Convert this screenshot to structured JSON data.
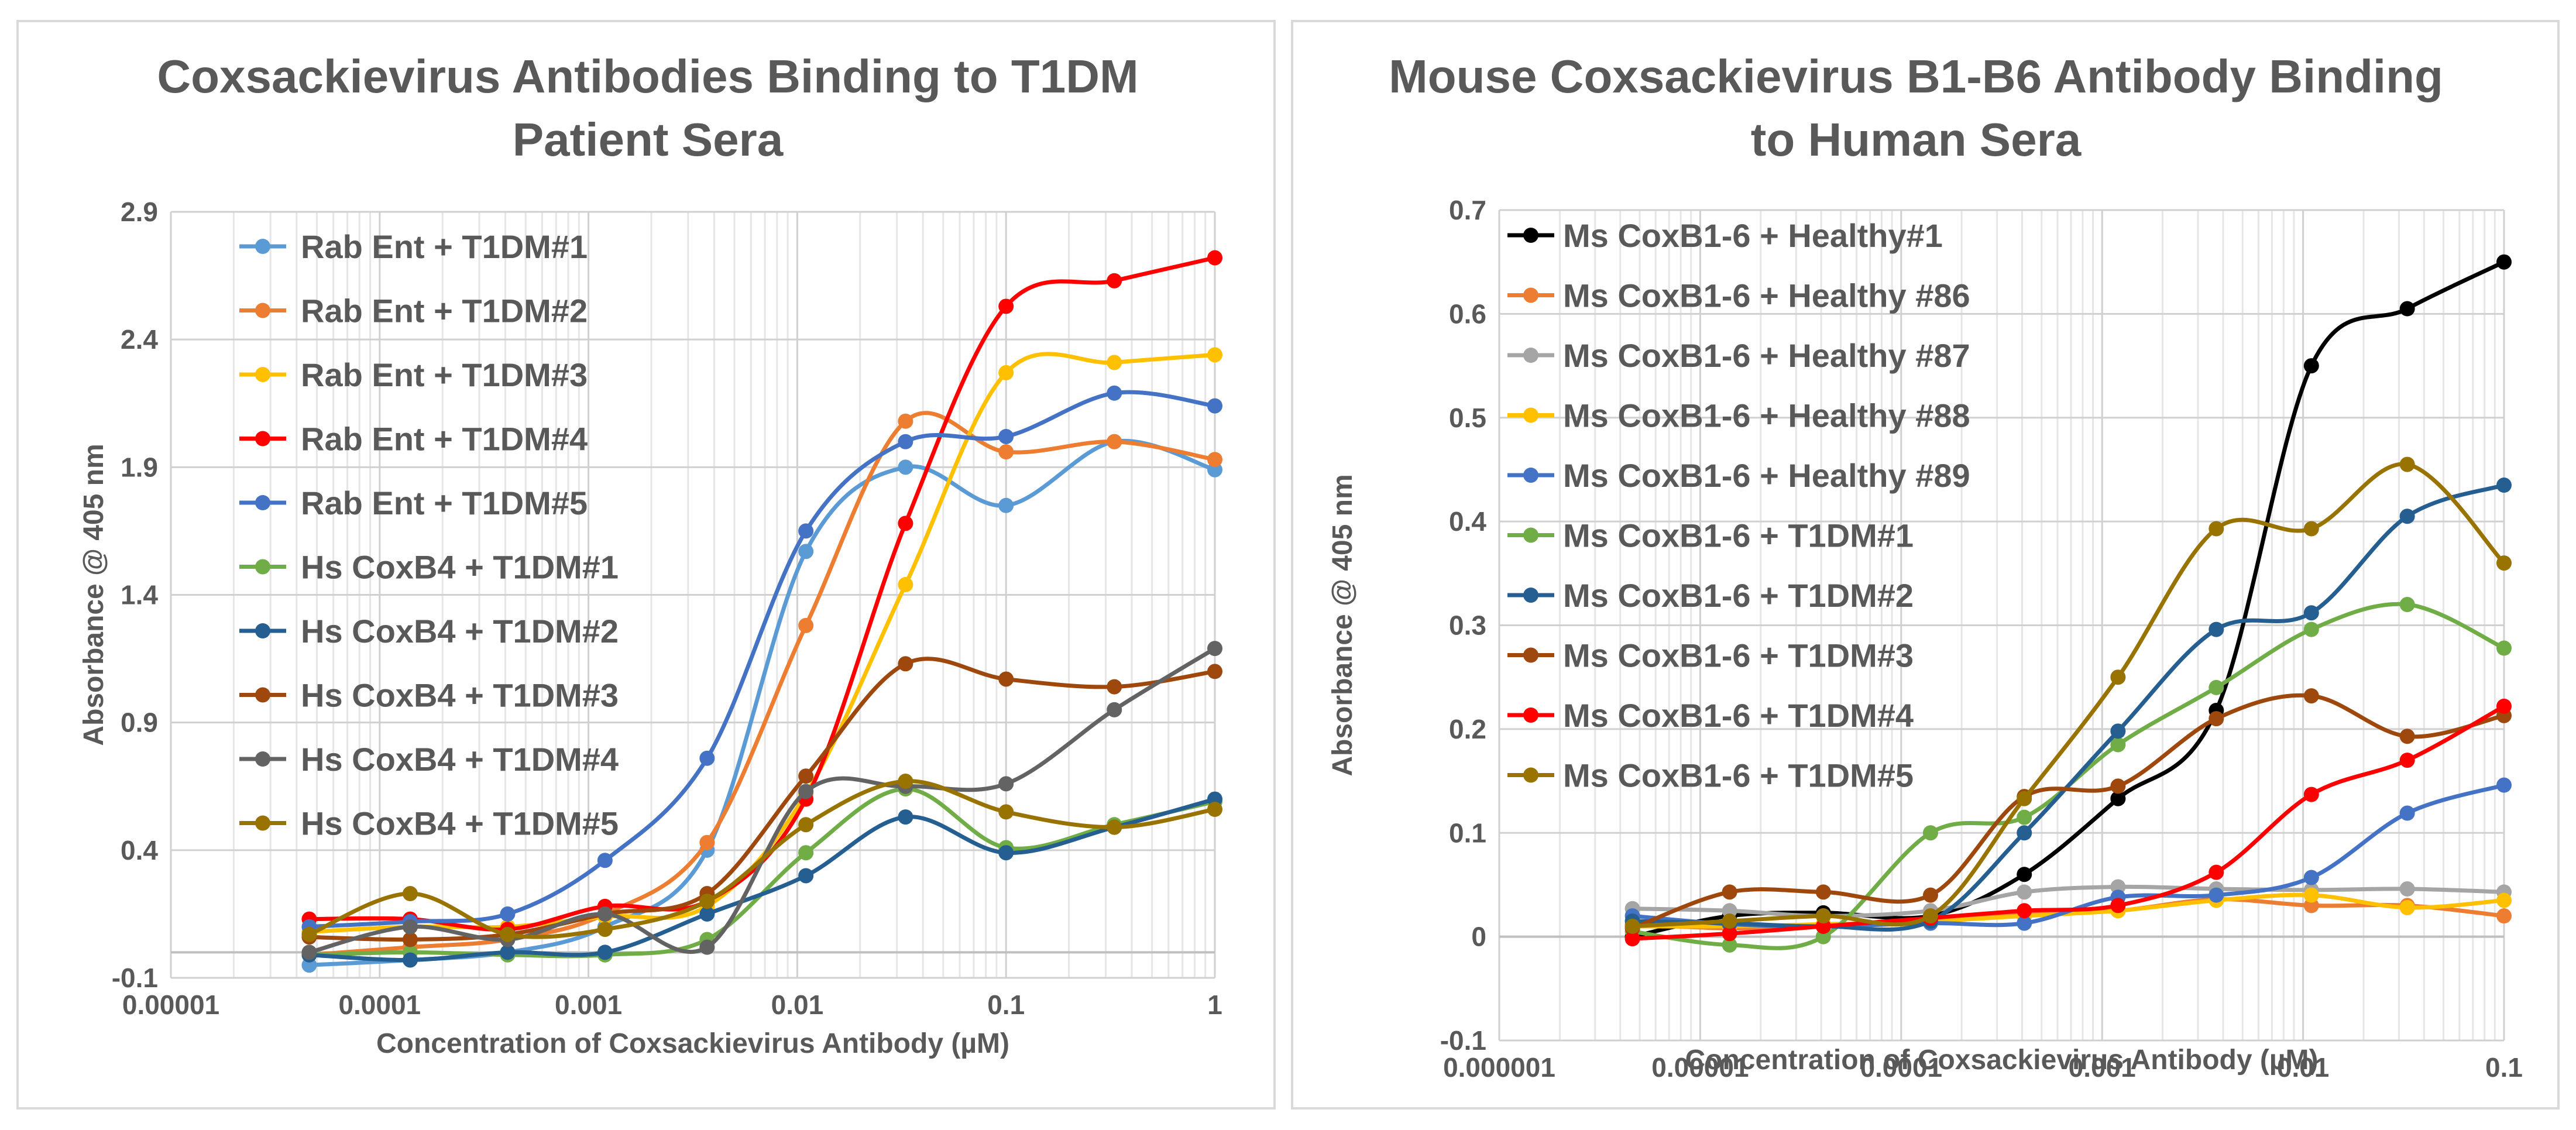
{
  "chart_data": [
    {
      "type": "line",
      "title": "Coxsackievirus Antibodies Binding to T1DM Patient Sera",
      "title_lines": [
        "Coxsackievirus Antibodies Binding to T1DM",
        "Patient Sera"
      ],
      "xlabel": "Concentration of Coxsackievirus Antibody (µM)",
      "ylabel": "Absorbance @ 405 nm",
      "xscale": "log",
      "xlim": [
        1e-05,
        1
      ],
      "ylim": [
        -0.1,
        2.9
      ],
      "xticks": [
        1e-05,
        0.0001,
        0.001,
        0.01,
        0.1,
        1
      ],
      "xtick_labels": [
        "0.00001",
        "0.0001",
        "0.001",
        "0.01",
        "0.1",
        "1"
      ],
      "yticks": [
        -0.1,
        0.4,
        0.9,
        1.4,
        1.9,
        2.4,
        2.9
      ],
      "ytick_labels": [
        "-0.1",
        "0.4",
        "0.9",
        "1.4",
        "1.9",
        "2.4",
        "2.9"
      ],
      "legend_position": "top-left",
      "x": [
        4.6e-05,
        0.00014,
        0.00041,
        0.0012,
        0.0037,
        0.011,
        0.033,
        0.1,
        0.33,
        1
      ],
      "series": [
        {
          "name": "Rab Ent + T1DM#1",
          "color": "#5b9bd5",
          "values": [
            -0.05,
            -0.03,
            0.0,
            0.1,
            0.4,
            1.57,
            1.9,
            1.75,
            2.0,
            1.89
          ]
        },
        {
          "name": "Rab Ent + T1DM#2",
          "color": "#ed7d31",
          "values": [
            -0.01,
            0.02,
            0.05,
            0.15,
            0.43,
            1.28,
            2.08,
            1.96,
            2.0,
            1.93
          ]
        },
        {
          "name": "Rab Ent + T1DM#3",
          "color": "#ffc000",
          "values": [
            0.08,
            0.1,
            0.1,
            0.14,
            0.18,
            0.62,
            1.44,
            2.27,
            2.31,
            2.34
          ]
        },
        {
          "name": "Rab Ent + T1DM#4",
          "color": "#ff0000",
          "values": [
            0.13,
            0.13,
            0.09,
            0.18,
            0.2,
            0.6,
            1.68,
            2.53,
            2.63,
            2.72
          ]
        },
        {
          "name": "Rab Ent + T1DM#5",
          "color": "#4472c4",
          "values": [
            0.1,
            0.12,
            0.15,
            0.36,
            0.76,
            1.65,
            2.0,
            2.02,
            2.19,
            2.14
          ]
        },
        {
          "name": "Hs CoxB4 + T1DM#1",
          "color": "#70ad47",
          "values": [
            -0.01,
            0.0,
            -0.01,
            -0.01,
            0.05,
            0.39,
            0.64,
            0.41,
            0.5,
            0.59
          ]
        },
        {
          "name": "Hs CoxB4 + T1DM#2",
          "color": "#255e91",
          "values": [
            -0.01,
            -0.03,
            0.0,
            0.0,
            0.15,
            0.3,
            0.53,
            0.39,
            0.49,
            0.6
          ]
        },
        {
          "name": "Hs CoxB4 + T1DM#3",
          "color": "#9e480e",
          "values": [
            0.06,
            0.05,
            0.07,
            0.15,
            0.23,
            0.69,
            1.13,
            1.07,
            1.04,
            1.1
          ]
        },
        {
          "name": "Hs CoxB4 + T1DM#4",
          "color": "#636363",
          "values": [
            0.0,
            0.1,
            0.05,
            0.15,
            0.02,
            0.63,
            0.65,
            0.66,
            0.95,
            1.19
          ]
        },
        {
          "name": "Hs CoxB4 + T1DM#5",
          "color": "#997300",
          "values": [
            0.07,
            0.23,
            0.07,
            0.09,
            0.2,
            0.5,
            0.67,
            0.55,
            0.49,
            0.56
          ]
        }
      ]
    },
    {
      "type": "line",
      "title": "Mouse Coxsackievirus B1-B6 Antibody Binding to Human Sera",
      "title_lines": [
        "Mouse Coxsackievirus B1-B6 Antibody Binding",
        "to Human Sera"
      ],
      "xlabel": "Concentration of Coxsackievirus Antibody (µM)",
      "ylabel": "Absorbance @ 405 nm",
      "xscale": "log",
      "xlim": [
        1e-06,
        0.1
      ],
      "ylim": [
        -0.1,
        0.7
      ],
      "xticks": [
        1e-06,
        1e-05,
        0.0001,
        0.001,
        0.01,
        0.1
      ],
      "xtick_labels": [
        "0.000001",
        "0.00001",
        "0.0001",
        "0.001",
        "0.01",
        "0.1"
      ],
      "yticks": [
        -0.1,
        0,
        0.1,
        0.2,
        0.3,
        0.4,
        0.5,
        0.6,
        0.7
      ],
      "ytick_labels": [
        "-0.1",
        "0",
        "0.1",
        "0.2",
        "0.3",
        "0.4",
        "0.5",
        "0.6",
        "0.7"
      ],
      "legend_position": "top-left",
      "x": [
        4.6e-06,
        1.4e-05,
        4.1e-05,
        0.00014,
        0.00041,
        0.0012,
        0.0037,
        0.011,
        0.033,
        0.1
      ],
      "series": [
        {
          "name": "Ms CoxB1-6 + Healthy#1",
          "color": "#000000",
          "values": [
            0.0,
            0.02,
            0.023,
            0.02,
            0.06,
            0.133,
            0.218,
            0.55,
            0.605,
            0.65
          ]
        },
        {
          "name": "Ms CoxB1-6 + Healthy #86",
          "color": "#ed7d31",
          "values": [
            0.012,
            0.008,
            0.01,
            0.015,
            0.022,
            0.025,
            0.036,
            0.03,
            0.03,
            0.02
          ]
        },
        {
          "name": "Ms CoxB1-6 + Healthy #87",
          "color": "#a5a5a5",
          "values": [
            0.027,
            0.025,
            0.02,
            0.025,
            0.043,
            0.048,
            0.046,
            0.045,
            0.046,
            0.043
          ]
        },
        {
          "name": "Ms CoxB1-6 + Healthy #88",
          "color": "#ffc000",
          "values": [
            0.01,
            0.01,
            0.012,
            0.015,
            0.02,
            0.025,
            0.035,
            0.04,
            0.028,
            0.035
          ]
        },
        {
          "name": "Ms CoxB1-6 + Healthy #89",
          "color": "#4472c4",
          "values": [
            0.02,
            0.012,
            0.01,
            0.013,
            0.013,
            0.038,
            0.04,
            0.057,
            0.119,
            0.146
          ]
        },
        {
          "name": "Ms CoxB1-6 + T1DM#1",
          "color": "#70ad47",
          "values": [
            0.005,
            -0.008,
            0.0,
            0.1,
            0.115,
            0.185,
            0.24,
            0.296,
            0.32,
            0.278
          ]
        },
        {
          "name": "Ms CoxB1-6 + T1DM#2",
          "color": "#255e91",
          "values": [
            0.015,
            0.013,
            0.01,
            0.015,
            0.1,
            0.198,
            0.296,
            0.312,
            0.405,
            0.435
          ]
        },
        {
          "name": "Ms CoxB1-6 + T1DM#3",
          "color": "#9e480e",
          "values": [
            0.008,
            0.043,
            0.043,
            0.04,
            0.135,
            0.145,
            0.21,
            0.232,
            0.193,
            0.213
          ]
        },
        {
          "name": "Ms CoxB1-6 + T1DM#4",
          "color": "#ff0000",
          "values": [
            -0.002,
            0.003,
            0.01,
            0.018,
            0.025,
            0.03,
            0.062,
            0.137,
            0.17,
            0.222
          ]
        },
        {
          "name": "Ms CoxB1-6 + T1DM#5",
          "color": "#997300",
          "values": [
            0.01,
            0.015,
            0.02,
            0.02,
            0.133,
            0.25,
            0.393,
            0.393,
            0.455,
            0.36
          ]
        }
      ]
    }
  ]
}
